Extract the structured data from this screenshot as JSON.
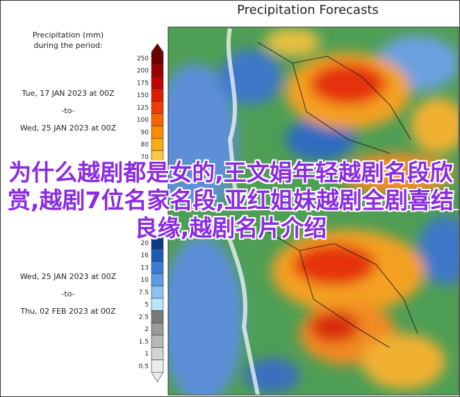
{
  "title": "Precipitation Forecasts",
  "legend_title": [
    "Precipitation (mm)",
    "during the period:"
  ],
  "period_1": {
    "start": "Tue, 17 JAN 2023 at 00Z",
    "to": "-to-",
    "end": "Wed, 25 JAN 2023 at 00Z"
  },
  "period_2": {
    "start": "Wed, 25 JAN 2023 at 00Z",
    "to": "-to-",
    "end": "Thu, 02 FEB 2023 at 00Z"
  },
  "colorbar_upper": [
    {
      "label": "250",
      "color": "#6e0000"
    },
    {
      "label": "200",
      "color": "#9a0000"
    },
    {
      "label": "175",
      "color": "#c40000"
    },
    {
      "label": "150",
      "color": "#e01a00"
    },
    {
      "label": "125",
      "color": "#f03c00"
    },
    {
      "label": "100",
      "color": "#f76400"
    },
    {
      "label": "90",
      "color": "#fa8a00"
    },
    {
      "label": "80",
      "color": "#fcaa10"
    },
    {
      "label": "70",
      "color": "#fdc840"
    }
  ],
  "colorbar_lower": [
    {
      "label": "20",
      "color": "#0b3c8c"
    },
    {
      "label": "16",
      "color": "#1d5cb4"
    },
    {
      "label": "13",
      "color": "#3a7cd4"
    },
    {
      "label": "10",
      "color": "#5c9ce4"
    },
    {
      "label": "7.5",
      "color": "#8cc2f2"
    },
    {
      "label": "5",
      "color": "#b8e4fc"
    },
    {
      "label": "2.5",
      "color": "#7a7a7a"
    },
    {
      "label": "2",
      "color": "#9a9a9a"
    },
    {
      "label": "1.5",
      "color": "#b8b8b8"
    },
    {
      "label": "1",
      "color": "#d4d4d4"
    },
    {
      "label": "0.5",
      "color": "#ececec"
    }
  ],
  "overlay_text": "为什么越剧都是女的,王文娟年轻越剧名段欣赏,越剧7位名家名段,亚红姐妹越剧全剧喜结良缘,越剧名片介绍"
}
